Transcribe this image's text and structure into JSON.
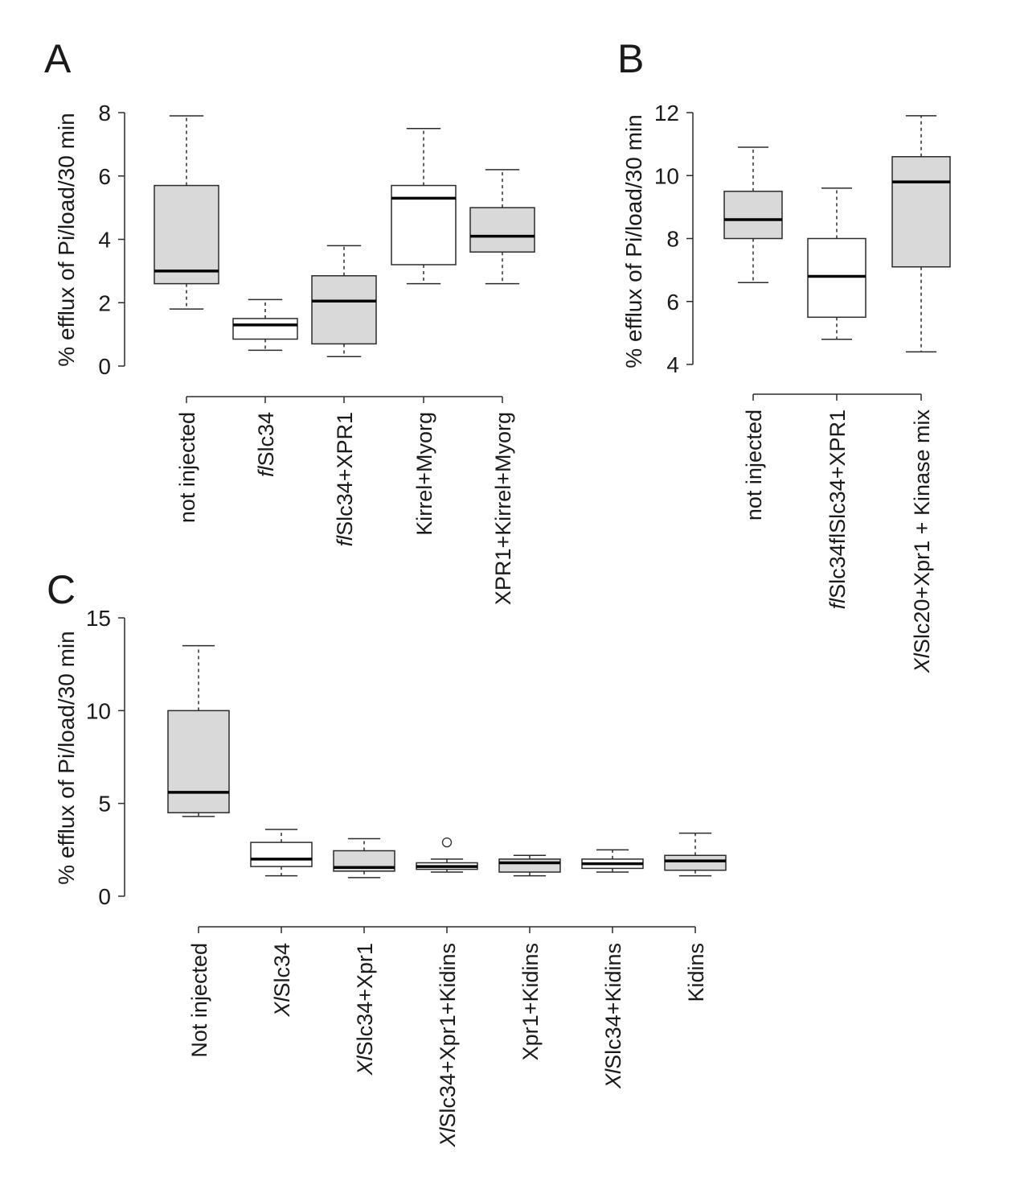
{
  "colors": {
    "background": "#ffffff",
    "box_fill_gray": "#d9d9d9",
    "box_fill_white": "#ffffff",
    "line": "#2b2b2b"
  },
  "chart_data": [
    {
      "type": "boxplot",
      "panel": "A",
      "ylabel": "% efflux of Pi/load/30 min",
      "ylim": [
        0,
        8
      ],
      "yticks": [
        0,
        2,
        4,
        6,
        8
      ],
      "grid": false,
      "categories": [
        {
          "italic": "",
          "text": "not injected"
        },
        {
          "italic": "fl",
          "text": "Slc34"
        },
        {
          "italic": "fl",
          "text": "Slc34+XPR1"
        },
        {
          "italic": "",
          "text": "Kirrel+Myorg"
        },
        {
          "italic": "",
          "text": "XPR1+Kirrel+Myorg"
        }
      ],
      "boxes": [
        {
          "fill": "gray",
          "whisker_low": 1.8,
          "q1": 2.6,
          "median": 3.0,
          "q3": 5.7,
          "whisker_high": 7.9,
          "outliers": []
        },
        {
          "fill": "white",
          "whisker_low": 0.5,
          "q1": 0.85,
          "median": 1.3,
          "q3": 1.5,
          "whisker_high": 2.1,
          "outliers": []
        },
        {
          "fill": "gray",
          "whisker_low": 0.3,
          "q1": 0.7,
          "median": 2.05,
          "q3": 2.85,
          "whisker_high": 3.8,
          "outliers": []
        },
        {
          "fill": "white",
          "whisker_low": 2.6,
          "q1": 3.2,
          "median": 5.3,
          "q3": 5.7,
          "whisker_high": 7.5,
          "outliers": []
        },
        {
          "fill": "gray",
          "whisker_low": 2.6,
          "q1": 3.6,
          "median": 4.1,
          "q3": 5.0,
          "whisker_high": 6.2,
          "outliers": []
        }
      ]
    },
    {
      "type": "boxplot",
      "panel": "B",
      "ylabel": "% efflux of Pi/load/30 min",
      "ylim": [
        4,
        12
      ],
      "yticks": [
        4,
        6,
        8,
        10,
        12
      ],
      "grid": false,
      "categories": [
        {
          "italic": "",
          "text": "not injected"
        },
        {
          "italic": "fl",
          "text": "Slc34flSlc34+XPR1"
        },
        {
          "italic": "Xl",
          "text": "Slc20+Xpr1 + Kinase mix"
        }
      ],
      "boxes": [
        {
          "fill": "gray",
          "whisker_low": 6.6,
          "q1": 8.0,
          "median": 8.6,
          "q3": 9.5,
          "whisker_high": 10.9,
          "outliers": []
        },
        {
          "fill": "white",
          "whisker_low": 4.8,
          "q1": 5.5,
          "median": 6.8,
          "q3": 8.0,
          "whisker_high": 9.6,
          "outliers": []
        },
        {
          "fill": "gray",
          "whisker_low": 4.4,
          "q1": 7.1,
          "median": 9.8,
          "q3": 10.6,
          "whisker_high": 11.9,
          "outliers": []
        }
      ]
    },
    {
      "type": "boxplot",
      "panel": "C",
      "ylabel": "% efflux of Pi/load/30 min",
      "ylim": [
        0,
        15
      ],
      "yticks": [
        0,
        5,
        10,
        15
      ],
      "grid": false,
      "categories": [
        {
          "italic": "",
          "text": "Not injected"
        },
        {
          "italic": "Xl",
          "text": "Slc34"
        },
        {
          "italic": "Xl",
          "text": "Slc34+Xpr1"
        },
        {
          "italic": "Xl",
          "text": "Slc34+Xpr1+Kidins"
        },
        {
          "italic": "",
          "text": "Xpr1+Kidins"
        },
        {
          "italic": "Xl",
          "text": "Slc34+Kidins"
        },
        {
          "italic": "",
          "text": "Kidins"
        }
      ],
      "boxes": [
        {
          "fill": "gray",
          "whisker_low": 4.3,
          "q1": 4.5,
          "median": 5.6,
          "q3": 10.0,
          "whisker_high": 13.5,
          "outliers": []
        },
        {
          "fill": "white",
          "whisker_low": 1.1,
          "q1": 1.6,
          "median": 2.0,
          "q3": 2.9,
          "whisker_high": 3.6,
          "outliers": []
        },
        {
          "fill": "gray",
          "whisker_low": 1.0,
          "q1": 1.35,
          "median": 1.55,
          "q3": 2.45,
          "whisker_high": 3.1,
          "outliers": []
        },
        {
          "fill": "white",
          "whisker_low": 1.3,
          "q1": 1.45,
          "median": 1.6,
          "q3": 1.8,
          "whisker_high": 2.0,
          "outliers": [
            2.9
          ]
        },
        {
          "fill": "gray",
          "whisker_low": 1.1,
          "q1": 1.3,
          "median": 1.8,
          "q3": 2.0,
          "whisker_high": 2.2,
          "outliers": []
        },
        {
          "fill": "white",
          "whisker_low": 1.3,
          "q1": 1.5,
          "median": 1.75,
          "q3": 2.0,
          "whisker_high": 2.5,
          "outliers": []
        },
        {
          "fill": "gray",
          "whisker_low": 1.1,
          "q1": 1.4,
          "median": 1.9,
          "q3": 2.2,
          "whisker_high": 3.4,
          "outliers": []
        }
      ]
    }
  ]
}
